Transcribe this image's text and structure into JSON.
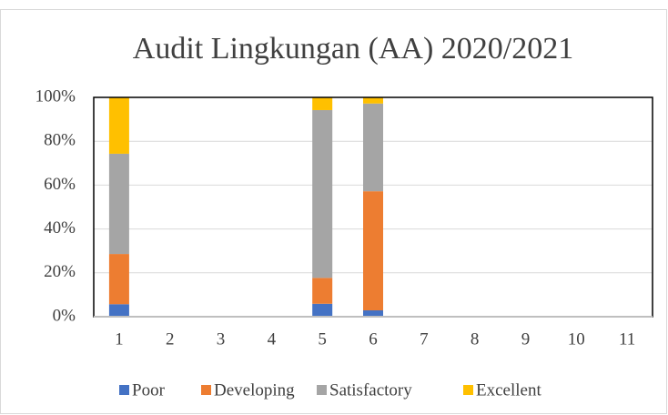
{
  "chart_data": {
    "type": "stacked_bar",
    "title": "Audit Lingkungan (AA) 2020/2021",
    "categories": [
      "1",
      "2",
      "3",
      "4",
      "5",
      "6",
      "7",
      "8",
      "9",
      "10",
      "11"
    ],
    "series": [
      {
        "name": "Poor",
        "color": "#4472c4",
        "values": [
          5.7,
          0,
          0,
          0,
          5.9,
          2.9,
          0,
          0,
          0,
          0,
          0
        ]
      },
      {
        "name": "Developing",
        "color": "#ed7d31",
        "values": [
          22.9,
          0,
          0,
          0,
          11.8,
          54.3,
          0,
          0,
          0,
          0,
          0
        ]
      },
      {
        "name": "Satisfactory",
        "color": "#a5a5a5",
        "values": [
          45.7,
          0,
          0,
          0,
          76.5,
          40,
          0,
          0,
          0,
          0,
          0
        ]
      },
      {
        "name": "Excellent",
        "color": "#ffc000",
        "values": [
          25.7,
          0,
          0,
          0,
          5.9,
          2.9,
          0,
          0,
          0,
          0,
          0
        ]
      }
    ],
    "ylim": [
      0,
      100
    ],
    "yticks": [
      {
        "value": 0,
        "label": "0%"
      },
      {
        "value": 20,
        "label": "20%"
      },
      {
        "value": 40,
        "label": "40%"
      },
      {
        "value": 60,
        "label": "60%"
      },
      {
        "value": 80,
        "label": "80%"
      },
      {
        "value": 100,
        "label": "100%"
      }
    ],
    "grid": true,
    "legend": "bottom"
  }
}
